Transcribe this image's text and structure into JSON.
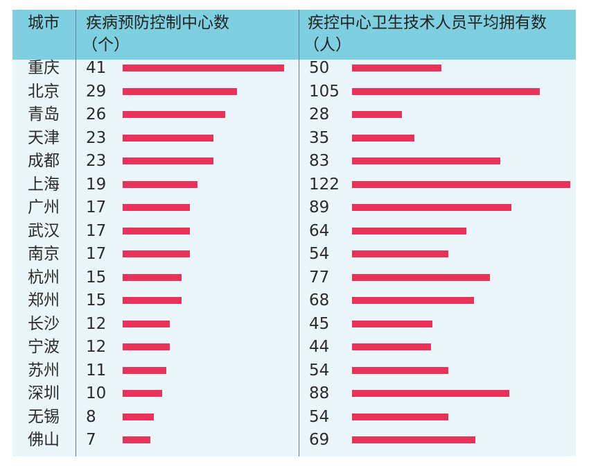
{
  "header": {
    "city_label": "城市",
    "col1_label_line1": "疾病预防控制中心数",
    "col1_label_line2": "（个）",
    "col2_label_line1": "疾控中心卫生技术人员平均拥有数",
    "col2_label_line2": "（人）"
  },
  "colors": {
    "header_bg": "#7ecfe0",
    "body_bg": "#eaf6fa",
    "bar": "#e9325a"
  },
  "chart_data": {
    "type": "bar",
    "orientation": "horizontal",
    "categories": [
      "重庆",
      "北京",
      "青岛",
      "天津",
      "成都",
      "上海",
      "广州",
      "武汉",
      "南京",
      "杭州",
      "郑州",
      "长沙",
      "宁波",
      "苏州",
      "深圳",
      "无锡",
      "佛山"
    ],
    "series": [
      {
        "name": "疾病预防控制中心数（个）",
        "values": [
          41,
          29,
          26,
          23,
          23,
          19,
          17,
          17,
          17,
          15,
          15,
          12,
          12,
          11,
          10,
          8,
          7
        ]
      },
      {
        "name": "疾控中心卫生技术人员平均拥有数（人）",
        "values": [
          50,
          105,
          28,
          35,
          83,
          122,
          89,
          64,
          54,
          77,
          68,
          45,
          44,
          54,
          88,
          54,
          69
        ]
      }
    ]
  }
}
